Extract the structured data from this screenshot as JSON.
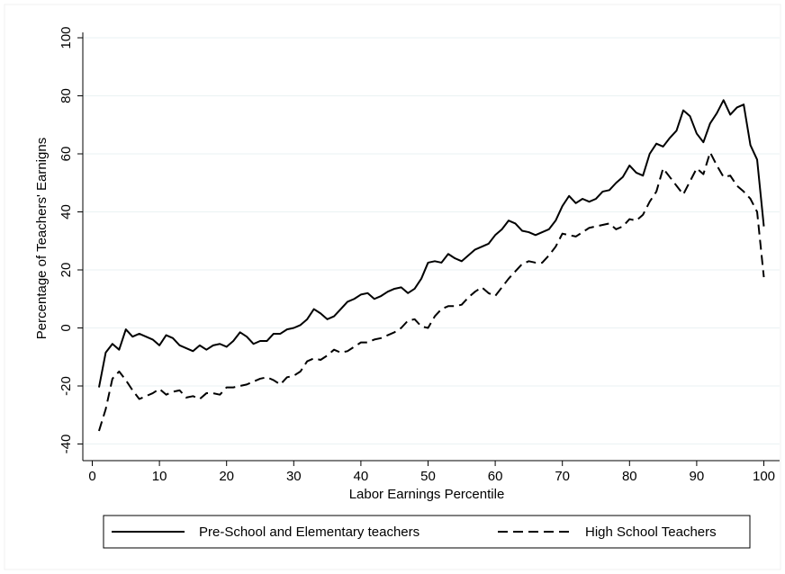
{
  "chart_data": {
    "type": "line",
    "xlabel": "Labor Earnings Percentile",
    "ylabel": "Percentage of Teachers' Earnigns",
    "xlim": [
      0,
      100
    ],
    "ylim": [
      -40,
      100
    ],
    "xticks": [
      0,
      10,
      20,
      30,
      40,
      50,
      60,
      70,
      80,
      90,
      100
    ],
    "yticks": [
      -40,
      -20,
      0,
      20,
      40,
      60,
      80,
      100
    ],
    "grid": "horizontal",
    "legend_position": "bottom",
    "series": [
      {
        "name": "Pre-School and Elementary teachers",
        "style": "solid",
        "color": "#000000",
        "x": [
          1,
          2,
          3,
          4,
          5,
          6,
          7,
          8,
          9,
          10,
          11,
          12,
          13,
          14,
          15,
          16,
          17,
          18,
          19,
          20,
          21,
          22,
          23,
          24,
          25,
          26,
          27,
          28,
          29,
          30,
          31,
          32,
          33,
          34,
          35,
          36,
          37,
          38,
          39,
          40,
          41,
          42,
          43,
          44,
          45,
          46,
          47,
          48,
          49,
          50,
          51,
          52,
          53,
          54,
          55,
          56,
          57,
          58,
          59,
          60,
          61,
          62,
          63,
          64,
          65,
          66,
          67,
          68,
          69,
          70,
          71,
          72,
          73,
          74,
          75,
          76,
          77,
          78,
          79,
          80,
          81,
          82,
          83,
          84,
          85,
          86,
          87,
          88,
          89,
          90,
          91,
          92,
          93,
          94,
          95,
          96,
          97,
          98,
          99,
          100
        ],
        "y": [
          -20.5,
          -8.5,
          -5.5,
          -7.5,
          -0.5,
          -3,
          -2,
          -3,
          -4,
          -6,
          -2.5,
          -3.5,
          -6,
          -7,
          -8,
          -6,
          -7.5,
          -6,
          -5.5,
          -6.5,
          -4.5,
          -1.5,
          -3,
          -5.5,
          -4.5,
          -4.5,
          -2,
          -2,
          -0.5,
          0,
          1,
          3,
          6.5,
          5,
          3,
          4,
          6.5,
          9,
          10,
          11.5,
          12,
          10,
          11,
          12.5,
          13.5,
          14,
          12,
          13.5,
          17,
          22.5,
          23,
          22.5,
          25.5,
          24,
          23,
          25,
          27,
          28,
          29,
          32,
          34,
          37,
          36,
          33.5,
          33,
          32,
          33,
          34,
          37,
          42,
          45.5,
          43,
          44.5,
          43.5,
          44.5,
          47,
          47.5,
          50,
          52,
          56,
          53.5,
          52.5,
          60,
          63.5,
          62.5,
          65.5,
          68,
          75,
          73,
          67,
          64,
          70.5,
          74,
          78.5,
          73.5,
          76,
          77,
          63,
          58,
          35
        ]
      },
      {
        "name": "High School Teachers",
        "style": "dashed",
        "color": "#000000",
        "x": [
          1,
          2,
          3,
          4,
          5,
          6,
          7,
          8,
          9,
          10,
          11,
          12,
          13,
          14,
          15,
          16,
          17,
          18,
          19,
          20,
          21,
          22,
          23,
          24,
          25,
          26,
          27,
          28,
          29,
          30,
          31,
          32,
          33,
          34,
          35,
          36,
          37,
          38,
          39,
          40,
          41,
          42,
          43,
          44,
          45,
          46,
          47,
          48,
          49,
          50,
          51,
          52,
          53,
          54,
          55,
          56,
          57,
          58,
          59,
          60,
          61,
          62,
          63,
          64,
          65,
          66,
          67,
          68,
          69,
          70,
          71,
          72,
          73,
          74,
          75,
          76,
          77,
          78,
          79,
          80,
          81,
          82,
          83,
          84,
          85,
          86,
          87,
          88,
          89,
          90,
          91,
          92,
          93,
          94,
          95,
          96,
          97,
          98,
          99,
          100
        ],
        "y": [
          -35.5,
          -28,
          -17.5,
          -15,
          -18,
          -21.5,
          -24.5,
          -23.5,
          -22.5,
          -21,
          -23,
          -22,
          -21.5,
          -24,
          -23.5,
          -24.5,
          -22.5,
          -22.5,
          -23,
          -20.5,
          -20.5,
          -20,
          -19.5,
          -18.5,
          -17.5,
          -17,
          -18,
          -19.5,
          -17,
          -16.5,
          -15,
          -11.5,
          -10.5,
          -11,
          -9.5,
          -7.5,
          -8.5,
          -8,
          -6.5,
          -5,
          -5,
          -4,
          -3.5,
          -2.5,
          -1.5,
          0,
          2.5,
          3,
          0.5,
          0,
          4,
          6.5,
          7.5,
          7.5,
          8,
          10.5,
          12.5,
          14,
          12,
          11,
          14,
          17,
          19.5,
          22,
          23,
          22.5,
          22.5,
          25,
          28,
          32.5,
          32,
          31.5,
          33,
          34.5,
          35,
          35.5,
          36,
          34,
          35,
          37.5,
          37,
          39,
          43.5,
          47,
          55,
          52,
          49,
          46,
          50.5,
          55,
          53,
          60.5,
          56,
          52,
          52.5,
          49,
          47,
          44.5,
          40,
          17.5
        ]
      }
    ]
  }
}
